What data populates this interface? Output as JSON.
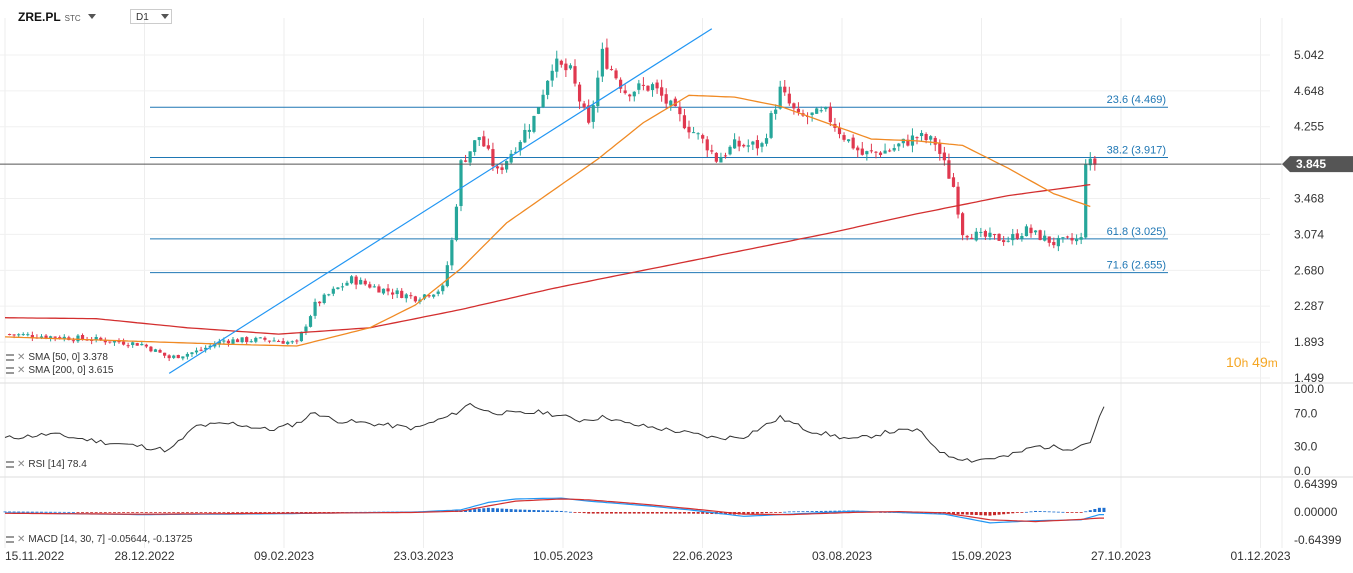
{
  "header": {
    "symbol": "ZRE.PL",
    "market": "STC",
    "timeframe": "D1"
  },
  "timer": {
    "hours": "10",
    "h_unit": "h",
    "minutes": "49",
    "m_unit": "m"
  },
  "colors": {
    "up": "#26a69a",
    "down": "#e0384f",
    "sma50": "#f08a24",
    "sma200": "#d32f2f",
    "fib": "#1f77b4",
    "trendline": "#2196f3",
    "price_tag": "#555555",
    "macd_line": "#2196f3",
    "macd_signal": "#d32f2f"
  },
  "indicators": {
    "sma50": "SMA [50, 0] 3.378",
    "sma200": "SMA [200, 0] 3.615",
    "rsi": "RSI [14] 78.4",
    "macd": "MACD [14, 30, 7] -0.05644, -0.13725"
  },
  "chart_data": [
    {
      "type": "candlestick",
      "panel": "price",
      "title": "",
      "y_ticks": [
        "5.042",
        "4.648",
        "4.255",
        "3.845",
        "3.468",
        "3.074",
        "2.680",
        "2.287",
        "1.893",
        "1.499"
      ],
      "ylim": [
        1.499,
        5.4
      ],
      "current_price": "3.845",
      "x_ticks": [
        "15.11.2022",
        "28.12.2022",
        "09.02.2023",
        "23.03.2023",
        "10.05.2023",
        "22.06.2023",
        "03.08.2023",
        "15.09.2023",
        "27.10.2023",
        "01.12.2023"
      ],
      "close_path": [
        [
          0,
          1.98
        ],
        [
          8,
          1.96
        ],
        [
          20,
          1.92
        ],
        [
          30,
          1.87
        ],
        [
          36,
          1.72
        ],
        [
          42,
          1.79
        ],
        [
          48,
          1.91
        ],
        [
          58,
          1.92
        ],
        [
          64,
          1.88
        ],
        [
          68,
          2.3
        ],
        [
          72,
          2.45
        ],
        [
          76,
          2.58
        ],
        [
          82,
          2.48
        ],
        [
          90,
          2.38
        ],
        [
          96,
          2.48
        ],
        [
          98,
          3.0
        ],
        [
          100,
          3.85
        ],
        [
          104,
          4.15
        ],
        [
          108,
          3.75
        ],
        [
          112,
          4.05
        ],
        [
          116,
          4.35
        ],
        [
          120,
          4.95
        ],
        [
          124,
          4.85
        ],
        [
          126,
          4.55
        ],
        [
          128,
          4.25
        ],
        [
          131,
          5.05
        ],
        [
          136,
          4.65
        ],
        [
          142,
          4.7
        ],
        [
          148,
          4.35
        ],
        [
          154,
          4.05
        ],
        [
          156,
          3.9
        ],
        [
          160,
          4.05
        ],
        [
          166,
          4.05
        ],
        [
          170,
          4.65
        ],
        [
          174,
          4.35
        ],
        [
          180,
          4.4
        ],
        [
          184,
          4.15
        ],
        [
          188,
          3.95
        ],
        [
          194,
          4.0
        ],
        [
          200,
          4.15
        ],
        [
          204,
          4.08
        ],
        [
          208,
          3.6
        ],
        [
          210,
          3.1
        ],
        [
          214,
          3.05
        ],
        [
          220,
          3.02
        ],
        [
          224,
          3.12
        ],
        [
          230,
          2.98
        ],
        [
          236,
          3.02
        ],
        [
          238,
          3.85
        ]
      ],
      "sma50_path": [
        [
          0,
          1.95
        ],
        [
          30,
          1.9
        ],
        [
          48,
          1.87
        ],
        [
          64,
          1.85
        ],
        [
          80,
          2.05
        ],
        [
          90,
          2.3
        ],
        [
          100,
          2.7
        ],
        [
          110,
          3.2
        ],
        [
          120,
          3.55
        ],
        [
          130,
          3.9
        ],
        [
          140,
          4.3
        ],
        [
          150,
          4.6
        ],
        [
          160,
          4.58
        ],
        [
          170,
          4.48
        ],
        [
          180,
          4.3
        ],
        [
          190,
          4.12
        ],
        [
          200,
          4.1
        ],
        [
          210,
          4.05
        ],
        [
          220,
          3.8
        ],
        [
          230,
          3.52
        ],
        [
          238,
          3.38
        ]
      ],
      "sma200_path": [
        [
          0,
          2.16
        ],
        [
          20,
          2.15
        ],
        [
          40,
          2.05
        ],
        [
          60,
          1.98
        ],
        [
          80,
          2.05
        ],
        [
          100,
          2.25
        ],
        [
          120,
          2.48
        ],
        [
          140,
          2.68
        ],
        [
          160,
          2.88
        ],
        [
          180,
          3.08
        ],
        [
          200,
          3.3
        ],
        [
          220,
          3.5
        ],
        [
          238,
          3.62
        ]
      ],
      "trendline": {
        "from": [
          36,
          1.55
        ],
        "to": [
          155,
          5.33
        ]
      },
      "fibonacci": [
        {
          "label": "23.6 (4.469)",
          "value": 4.469
        },
        {
          "label": "38.2 (3.917)",
          "value": 3.917
        },
        {
          "label": "61.8 (3.025)",
          "value": 3.025
        },
        {
          "label": "71.6 (2.655)",
          "value": 2.655
        }
      ]
    },
    {
      "type": "line",
      "panel": "rsi",
      "title": "",
      "y_ticks": [
        "100.0",
        "70.0",
        "30.0",
        "0.0"
      ],
      "ylim": [
        0,
        100
      ],
      "values_path": [
        [
          0,
          40
        ],
        [
          10,
          45
        ],
        [
          22,
          35
        ],
        [
          30,
          30
        ],
        [
          36,
          25
        ],
        [
          42,
          55
        ],
        [
          50,
          58
        ],
        [
          58,
          50
        ],
        [
          64,
          58
        ],
        [
          68,
          72
        ],
        [
          72,
          62
        ],
        [
          80,
          58
        ],
        [
          90,
          52
        ],
        [
          98,
          68
        ],
        [
          102,
          82
        ],
        [
          106,
          72
        ],
        [
          112,
          70
        ],
        [
          118,
          72
        ],
        [
          126,
          62
        ],
        [
          132,
          66
        ],
        [
          136,
          58
        ],
        [
          148,
          48
        ],
        [
          156,
          40
        ],
        [
          162,
          42
        ],
        [
          170,
          65
        ],
        [
          176,
          50
        ],
        [
          186,
          38
        ],
        [
          194,
          48
        ],
        [
          200,
          50
        ],
        [
          206,
          20
        ],
        [
          212,
          13
        ],
        [
          220,
          18
        ],
        [
          226,
          30
        ],
        [
          234,
          28
        ],
        [
          238,
          36
        ],
        [
          241,
          78
        ]
      ]
    },
    {
      "type": "macd",
      "panel": "macd",
      "title": "",
      "y_ticks": [
        "0.64399",
        "0.00000",
        "-0.64399"
      ],
      "ylim": [
        -0.64399,
        0.64399
      ],
      "macd_path": [
        [
          0,
          -0.02
        ],
        [
          30,
          -0.06
        ],
        [
          60,
          -0.04
        ],
        [
          90,
          0.0
        ],
        [
          100,
          0.05
        ],
        [
          106,
          0.22
        ],
        [
          112,
          0.3
        ],
        [
          122,
          0.32
        ],
        [
          128,
          0.25
        ],
        [
          140,
          0.15
        ],
        [
          150,
          0.05
        ],
        [
          162,
          -0.1
        ],
        [
          172,
          -0.05
        ],
        [
          186,
          0.02
        ],
        [
          196,
          -0.01
        ],
        [
          206,
          -0.05
        ],
        [
          216,
          -0.25
        ],
        [
          226,
          -0.2
        ],
        [
          236,
          -0.18
        ],
        [
          240,
          -0.06
        ]
      ],
      "signal_path": [
        [
          0,
          -0.03
        ],
        [
          30,
          -0.05
        ],
        [
          60,
          -0.03
        ],
        [
          90,
          -0.01
        ],
        [
          100,
          0.02
        ],
        [
          106,
          0.14
        ],
        [
          112,
          0.25
        ],
        [
          122,
          0.3
        ],
        [
          128,
          0.28
        ],
        [
          140,
          0.18
        ],
        [
          150,
          0.08
        ],
        [
          162,
          -0.05
        ],
        [
          172,
          -0.06
        ],
        [
          186,
          -0.01
        ],
        [
          196,
          0.01
        ],
        [
          206,
          -0.02
        ],
        [
          216,
          -0.18
        ],
        [
          226,
          -0.22
        ],
        [
          236,
          -0.17
        ],
        [
          240,
          -0.14
        ]
      ]
    }
  ]
}
